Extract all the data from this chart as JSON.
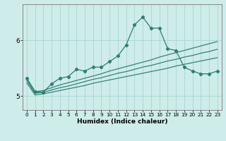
{
  "xlabel": "Humidex (Indice chaleur)",
  "xlim": [
    -0.5,
    23.5
  ],
  "ylim": [
    4.75,
    6.65
  ],
  "yticks": [
    5,
    6
  ],
  "xticks": [
    0,
    1,
    2,
    3,
    4,
    5,
    6,
    7,
    8,
    9,
    10,
    11,
    12,
    13,
    14,
    15,
    16,
    17,
    18,
    19,
    20,
    21,
    22,
    23
  ],
  "background_color": "#ceecea",
  "grid_color": "#a8d5d2",
  "line_color": "#2e7d72",
  "x": [
    0,
    1,
    2,
    3,
    4,
    5,
    6,
    7,
    8,
    9,
    10,
    11,
    12,
    13,
    14,
    15,
    16,
    17,
    18,
    19,
    20,
    21,
    22,
    23
  ],
  "y_main": [
    5.32,
    5.08,
    5.07,
    5.22,
    5.32,
    5.35,
    5.48,
    5.45,
    5.52,
    5.52,
    5.62,
    5.72,
    5.92,
    6.28,
    6.42,
    6.22,
    6.22,
    5.85,
    5.82,
    5.52,
    5.45,
    5.4,
    5.4,
    5.45
  ],
  "y_top": [
    5.32,
    5.08,
    5.1,
    5.15,
    5.2,
    5.24,
    5.28,
    5.32,
    5.36,
    5.4,
    5.45,
    5.49,
    5.53,
    5.57,
    5.61,
    5.65,
    5.7,
    5.74,
    5.78,
    5.82,
    5.86,
    5.9,
    5.94,
    5.98
  ],
  "y_mid": [
    5.28,
    5.05,
    5.07,
    5.11,
    5.15,
    5.18,
    5.22,
    5.26,
    5.3,
    5.33,
    5.37,
    5.41,
    5.44,
    5.48,
    5.52,
    5.55,
    5.59,
    5.63,
    5.66,
    5.7,
    5.73,
    5.77,
    5.8,
    5.84
  ],
  "y_bot": [
    5.24,
    5.02,
    5.04,
    5.07,
    5.1,
    5.13,
    5.16,
    5.19,
    5.23,
    5.26,
    5.29,
    5.32,
    5.35,
    5.38,
    5.41,
    5.44,
    5.47,
    5.5,
    5.54,
    5.57,
    5.6,
    5.63,
    5.66,
    5.69
  ]
}
